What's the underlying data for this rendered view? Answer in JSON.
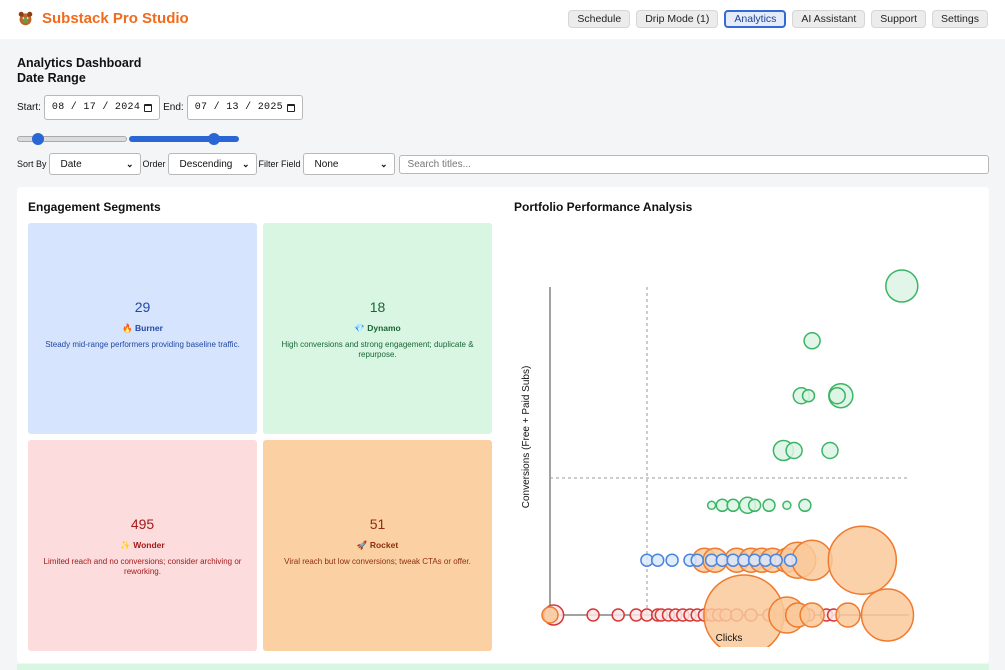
{
  "app": {
    "name": "Substack Pro Studio",
    "icon": "mascot-icon"
  },
  "nav": [
    "Schedule",
    "Drip Mode (1)",
    "Analytics",
    "AI Assistant",
    "Support",
    "Settings"
  ],
  "nav_active": "Analytics",
  "header": {
    "title": "Analytics Dashboard",
    "subtitle": "Date Range"
  },
  "dates": {
    "start_label": "Start:",
    "start": "08 / 17 / 2024",
    "end_label": "End:",
    "end": "07 / 13 / 2025"
  },
  "range": {
    "low_fraction": 0.07,
    "high_fraction": 0.9
  },
  "filters": {
    "sort_label": "Sort By",
    "sort_value": "Date",
    "order_label": "Order",
    "order_value": "Descending",
    "field_label": "Filter Field",
    "field_value": "None",
    "search_placeholder": "Search titles..."
  },
  "segments": {
    "title": "Engagement Segments",
    "items": [
      {
        "count": "29",
        "emoji": "🔥",
        "name": "Burner",
        "desc": "Steady mid-range performers providing baseline traffic."
      },
      {
        "count": "18",
        "emoji": "💎",
        "name": "Dynamo",
        "desc": "High conversions and strong engagement; duplicate & repurpose."
      },
      {
        "count": "495",
        "emoji": "✨",
        "name": "Wonder",
        "desc": "Limited reach and no conversions; consider archiving or reworking."
      },
      {
        "count": "51",
        "emoji": "🚀",
        "name": "Rocket",
        "desc": "Viral reach but low conversions; tweak CTAs or offer."
      }
    ]
  },
  "chart_title": "Portfolio Performance Analysis",
  "chart_data": {
    "type": "scatter",
    "xlabel": "Clicks",
    "ylabel": "Conversions (Free + Paid Subs)",
    "xlim": [
      0,
      1
    ],
    "ylim": [
      0,
      6
    ],
    "grid": false,
    "colors": {
      "Wonder": "#d93636",
      "Rocket": "#f07a2e",
      "Burner": "#4a86e0",
      "Dynamo": "#3bb565"
    },
    "series": [
      {
        "segment": "Wonder",
        "points": [
          [
            0.01,
            0,
            5
          ],
          [
            0.12,
            0,
            3
          ],
          [
            0.19,
            0,
            3
          ],
          [
            0.24,
            0,
            3
          ],
          [
            0.27,
            0,
            3
          ],
          [
            0.3,
            0,
            3
          ],
          [
            0.31,
            0,
            3
          ],
          [
            0.33,
            0,
            3
          ],
          [
            0.35,
            0,
            3
          ],
          [
            0.37,
            0,
            3
          ],
          [
            0.39,
            0,
            3
          ],
          [
            0.41,
            0,
            3
          ],
          [
            0.43,
            0,
            3
          ],
          [
            0.45,
            0,
            3
          ],
          [
            0.47,
            0,
            3
          ],
          [
            0.49,
            0,
            3
          ],
          [
            0.52,
            0,
            3
          ],
          [
            0.56,
            0,
            3
          ],
          [
            0.61,
            0,
            3
          ],
          [
            0.66,
            0,
            3
          ],
          [
            0.72,
            0,
            3
          ],
          [
            0.77,
            0,
            3
          ],
          [
            0.79,
            0,
            3
          ]
        ]
      },
      {
        "segment": "Rocket",
        "points": [
          [
            0,
            0,
            4
          ],
          [
            0.54,
            0,
            20
          ],
          [
            0.66,
            0,
            9
          ],
          [
            0.69,
            0,
            6
          ],
          [
            0.73,
            0,
            6
          ],
          [
            0.83,
            0,
            6
          ],
          [
            0.94,
            0,
            13
          ],
          [
            0.43,
            1,
            6
          ],
          [
            0.46,
            1,
            6
          ],
          [
            0.52,
            1,
            6
          ],
          [
            0.56,
            1,
            6
          ],
          [
            0.59,
            1,
            6
          ],
          [
            0.62,
            1,
            6
          ],
          [
            0.66,
            1,
            6
          ],
          [
            0.69,
            1,
            9
          ],
          [
            0.73,
            1,
            10
          ],
          [
            0.87,
            1,
            17
          ]
        ]
      },
      {
        "segment": "Burner",
        "points": [
          [
            0.27,
            1,
            3
          ],
          [
            0.3,
            1,
            3
          ],
          [
            0.34,
            1,
            3
          ],
          [
            0.39,
            1,
            3
          ],
          [
            0.41,
            1,
            3
          ],
          [
            0.45,
            1,
            3
          ],
          [
            0.48,
            1,
            3
          ],
          [
            0.51,
            1,
            3
          ],
          [
            0.54,
            1,
            3
          ],
          [
            0.57,
            1,
            3
          ],
          [
            0.6,
            1,
            3
          ],
          [
            0.63,
            1,
            3
          ],
          [
            0.67,
            1,
            3
          ]
        ]
      },
      {
        "segment": "Dynamo",
        "points": [
          [
            0.45,
            2,
            2
          ],
          [
            0.48,
            2,
            3
          ],
          [
            0.51,
            2,
            3
          ],
          [
            0.55,
            2,
            4
          ],
          [
            0.57,
            2,
            3
          ],
          [
            0.61,
            2,
            3
          ],
          [
            0.66,
            2,
            2
          ],
          [
            0.71,
            2,
            3
          ],
          [
            0.65,
            3,
            5
          ],
          [
            0.68,
            3,
            4
          ],
          [
            0.78,
            3,
            4
          ],
          [
            0.7,
            4,
            4
          ],
          [
            0.72,
            4,
            3
          ],
          [
            0.81,
            4,
            6
          ],
          [
            0.8,
            4,
            4
          ],
          [
            0.73,
            5,
            4
          ],
          [
            0.98,
            6,
            8
          ]
        ]
      }
    ]
  }
}
